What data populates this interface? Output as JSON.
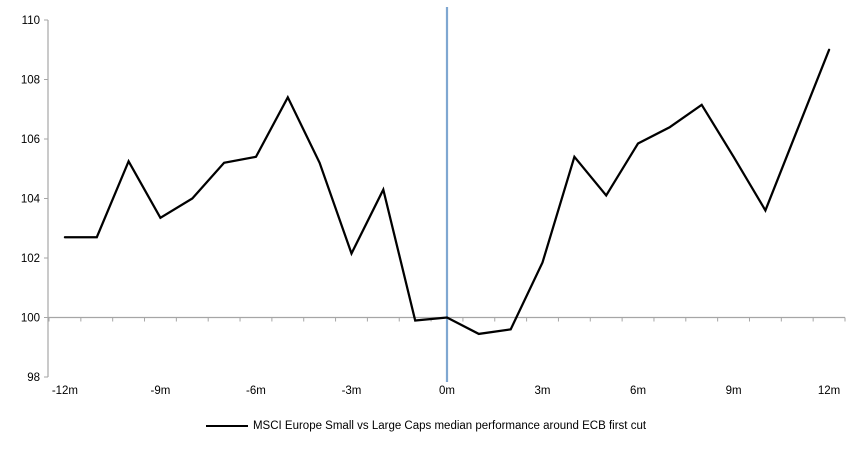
{
  "legend": {
    "label": "MSCI Europe Small vs Large Caps median performance around ECB first cut"
  },
  "chart_data": {
    "type": "line",
    "title": "",
    "xlabel": "",
    "ylabel": "",
    "x_months": [
      -12,
      -11,
      -10,
      -9,
      -8,
      -7,
      -6,
      -5,
      -4,
      -3,
      -2,
      -1,
      0,
      1,
      2,
      3,
      4,
      5,
      6,
      7,
      8,
      9,
      10,
      11,
      12
    ],
    "series": [
      {
        "name": "MSCI Europe Small vs Large Caps median performance around ECB first cut",
        "color": "#000000",
        "values": [
          102.7,
          102.7,
          105.25,
          103.35,
          104.0,
          105.2,
          105.4,
          107.4,
          105.2,
          102.15,
          104.3,
          99.9,
          100.0,
          99.45,
          99.6,
          101.85,
          105.4,
          104.1,
          105.85,
          106.4,
          107.15,
          105.4,
          103.6,
          106.3,
          109.0
        ]
      }
    ],
    "ylim": [
      98,
      110
    ],
    "y_ticks": [
      98,
      100,
      102,
      104,
      106,
      108,
      110
    ],
    "y_tick_labels": [
      "98",
      "100",
      "102",
      "104",
      "106",
      "108",
      "110"
    ],
    "x_tick_months": [
      -12,
      -9,
      -6,
      -3,
      0,
      3,
      6,
      9,
      12
    ],
    "x_tick_labels": [
      "-12m",
      "-9m",
      "-6m",
      "-3m",
      "0m",
      "3m",
      "6m",
      "9m",
      "12m"
    ],
    "baseline_value": 100,
    "event_line": {
      "x_month": 0,
      "color": "#7FA7D1"
    },
    "axis_color": "#A6A6A6",
    "grid": "baseline-only",
    "legend_position": "bottom"
  }
}
